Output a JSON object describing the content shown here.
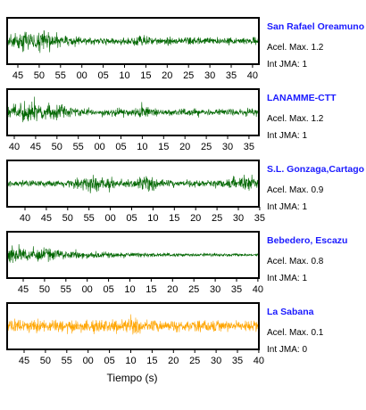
{
  "xlabel": "Tiempo (s)",
  "chart_data": [
    {
      "type": "line",
      "station": "San Rafael Oreamuno",
      "acel_max": "Acel. Max. 1.2",
      "int_jma": "Int JMA: 1",
      "color": "#006600",
      "x_tick_labels": [
        "45",
        "50",
        "55",
        "00",
        "05",
        "10",
        "15",
        "20",
        "25",
        "30",
        "35",
        "40"
      ],
      "profile": "early"
    },
    {
      "type": "line",
      "station": "LANAMME-CTT",
      "acel_max": "Acel. Max. 1.2",
      "int_jma": "Int JMA: 1",
      "color": "#006600",
      "x_tick_labels": [
        "40",
        "45",
        "50",
        "55",
        "00",
        "05",
        "10",
        "15",
        "20",
        "25",
        "30",
        "35"
      ],
      "profile": "early"
    },
    {
      "type": "line",
      "station": "S.L. Gonzaga,Cartago",
      "acel_max": "Acel. Max. 0.9",
      "int_jma": "Int JMA: 1",
      "color": "#006600",
      "x_tick_labels": [
        "40",
        "45",
        "50",
        "55",
        "00",
        "05",
        "10",
        "15",
        "20",
        "25",
        "30",
        "35"
      ],
      "profile": "late"
    },
    {
      "type": "line",
      "station": "Bebedero, Escazu",
      "acel_max": "Acel. Max. 0.8",
      "int_jma": "Int JMA: 1",
      "color": "#006600",
      "x_tick_labels": [
        "45",
        "50",
        "55",
        "00",
        "05",
        "10",
        "15",
        "20",
        "25",
        "30",
        "35",
        "40"
      ],
      "profile": "decay"
    },
    {
      "type": "line",
      "station": "La Sabana",
      "acel_max": "Acel. Max. 0.1",
      "int_jma": "Int JMA: 0",
      "color": "#FFA500",
      "x_tick_labels": [
        "45",
        "50",
        "55",
        "00",
        "05",
        "10",
        "15",
        "20",
        "25",
        "30",
        "35",
        "40"
      ],
      "profile": "noise"
    }
  ]
}
